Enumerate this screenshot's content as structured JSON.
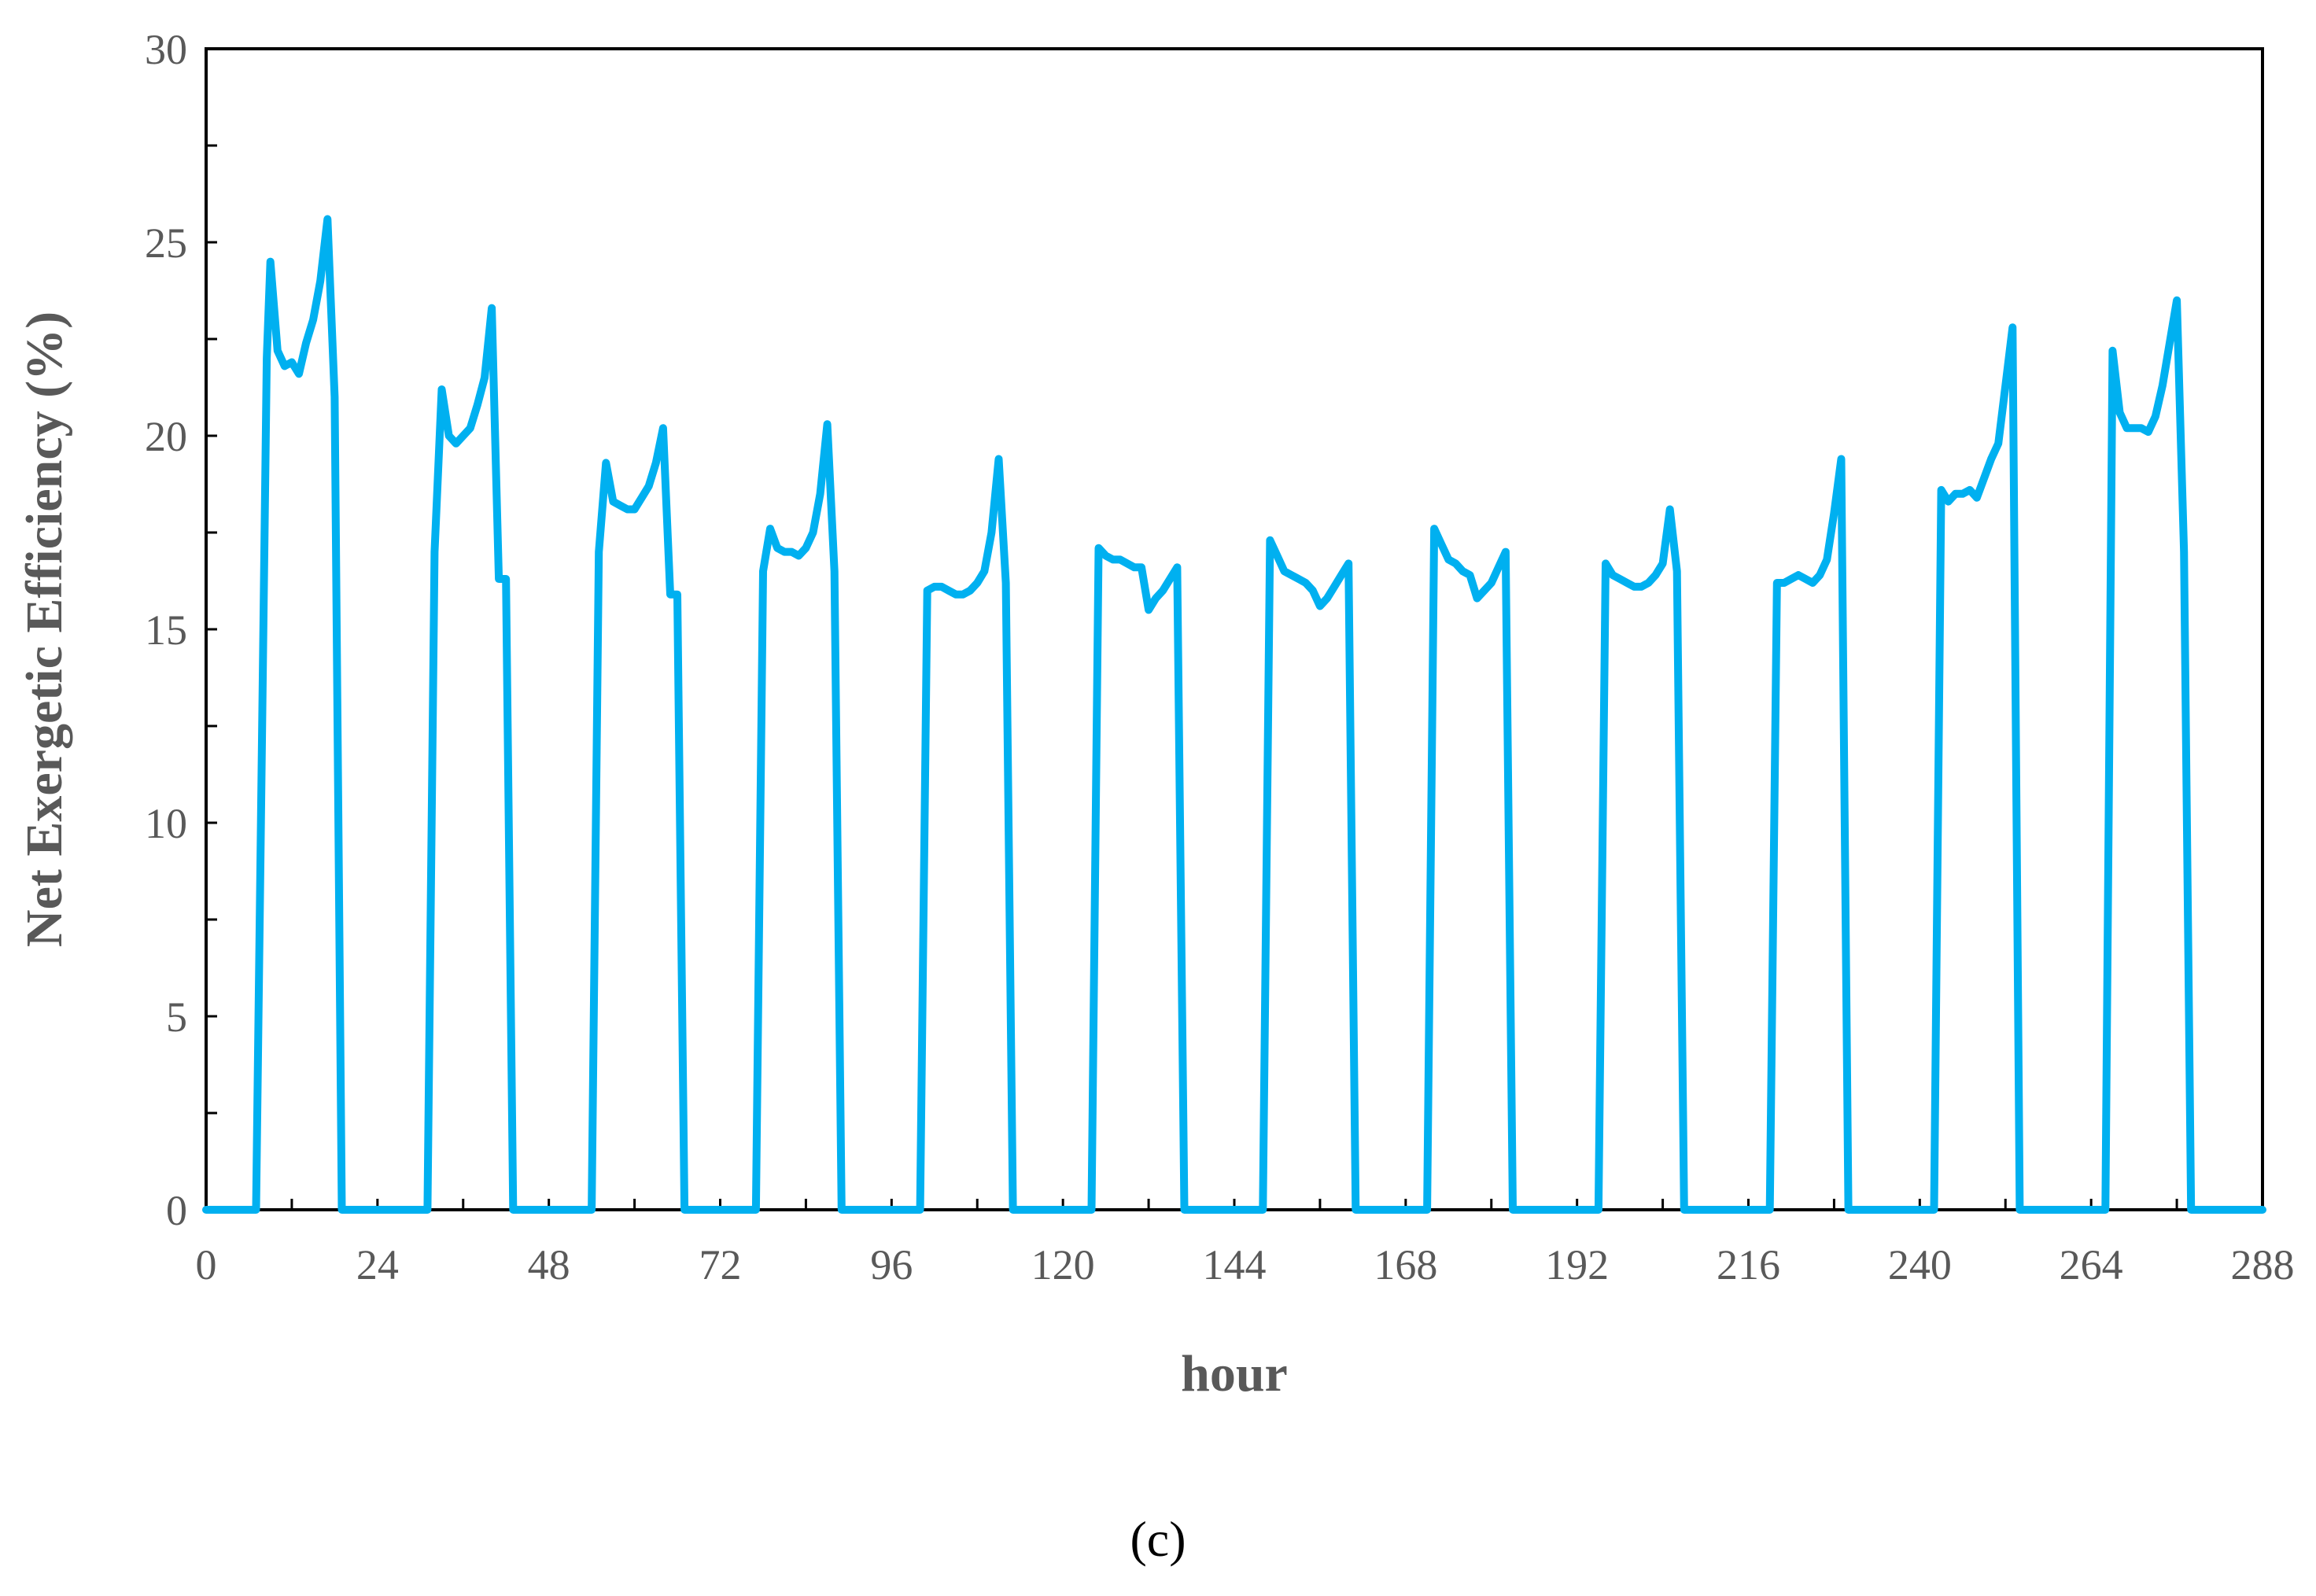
{
  "chart_data": {
    "type": "line",
    "title": "",
    "xlabel": "hour",
    "ylabel": "Net  Exergetic Efficiency (%)",
    "xlim": [
      0,
      288
    ],
    "ylim": [
      0,
      30
    ],
    "x_ticks": [
      0,
      24,
      48,
      72,
      96,
      120,
      144,
      168,
      192,
      216,
      240,
      264,
      288
    ],
    "y_ticks": [
      0,
      5,
      10,
      15,
      20,
      25,
      30
    ],
    "grid": false,
    "legend": "none",
    "series": [
      {
        "color": "#00B0F0",
        "points": [
          [
            0,
            0
          ],
          [
            7,
            0
          ],
          [
            8.5,
            22.0
          ],
          [
            9,
            24.5
          ],
          [
            10,
            22.2
          ],
          [
            11,
            21.8
          ],
          [
            12,
            21.9
          ],
          [
            13,
            21.6
          ],
          [
            14,
            22.4
          ],
          [
            15,
            23.0
          ],
          [
            16,
            24.0
          ],
          [
            17,
            25.6
          ],
          [
            18,
            21.0
          ],
          [
            19,
            0
          ],
          [
            31,
            0
          ],
          [
            32,
            17.0
          ],
          [
            33,
            21.2
          ],
          [
            34,
            20.0
          ],
          [
            35,
            19.8
          ],
          [
            36,
            20.0
          ],
          [
            37,
            20.2
          ],
          [
            38,
            20.8
          ],
          [
            39,
            21.5
          ],
          [
            40,
            23.3
          ],
          [
            41,
            16.3
          ],
          [
            42,
            16.3
          ],
          [
            43,
            0
          ],
          [
            54,
            0
          ],
          [
            55,
            17.0
          ],
          [
            56,
            19.3
          ],
          [
            57,
            18.3
          ],
          [
            58,
            18.2
          ],
          [
            59,
            18.1
          ],
          [
            60,
            18.1
          ],
          [
            61,
            18.4
          ],
          [
            62,
            18.7
          ],
          [
            63,
            19.3
          ],
          [
            64,
            20.2
          ],
          [
            65,
            15.9
          ],
          [
            66,
            15.9
          ],
          [
            67,
            0
          ],
          [
            77,
            0
          ],
          [
            78,
            16.5
          ],
          [
            79,
            17.6
          ],
          [
            80,
            17.1
          ],
          [
            81,
            17.0
          ],
          [
            82,
            17.0
          ],
          [
            83,
            16.9
          ],
          [
            84,
            17.1
          ],
          [
            85,
            17.5
          ],
          [
            86,
            18.5
          ],
          [
            87,
            20.3
          ],
          [
            88,
            16.5
          ],
          [
            89,
            0
          ],
          [
            100,
            0
          ],
          [
            101,
            16.0
          ],
          [
            102,
            16.1
          ],
          [
            103,
            16.1
          ],
          [
            104,
            16.0
          ],
          [
            105,
            15.9
          ],
          [
            106,
            15.9
          ],
          [
            107,
            16.0
          ],
          [
            108,
            16.2
          ],
          [
            109,
            16.5
          ],
          [
            110,
            17.5
          ],
          [
            111,
            19.4
          ],
          [
            112,
            16.2
          ],
          [
            113,
            0
          ],
          [
            124,
            0
          ],
          [
            125,
            17.1
          ],
          [
            126,
            16.9
          ],
          [
            127,
            16.8
          ],
          [
            128,
            16.8
          ],
          [
            129,
            16.7
          ],
          [
            130,
            16.6
          ],
          [
            131,
            16.6
          ],
          [
            132,
            15.5
          ],
          [
            133,
            15.8
          ],
          [
            134,
            16.0
          ],
          [
            135,
            16.3
          ],
          [
            136,
            16.6
          ],
          [
            137,
            0
          ],
          [
            148,
            0
          ],
          [
            149,
            17.3
          ],
          [
            150,
            16.9
          ],
          [
            151,
            16.5
          ],
          [
            152,
            16.4
          ],
          [
            153,
            16.3
          ],
          [
            154,
            16.2
          ],
          [
            155,
            16.0
          ],
          [
            156,
            15.6
          ],
          [
            157,
            15.8
          ],
          [
            158,
            16.1
          ],
          [
            159,
            16.4
          ],
          [
            160,
            16.7
          ],
          [
            161,
            0
          ],
          [
            171,
            0
          ],
          [
            172,
            17.6
          ],
          [
            173,
            17.2
          ],
          [
            174,
            16.8
          ],
          [
            175,
            16.7
          ],
          [
            176,
            16.5
          ],
          [
            177,
            16.4
          ],
          [
            178,
            15.8
          ],
          [
            179,
            16.0
          ],
          [
            180,
            16.2
          ],
          [
            181,
            16.6
          ],
          [
            182,
            17.0
          ],
          [
            183,
            0
          ],
          [
            195,
            0
          ],
          [
            196,
            16.7
          ],
          [
            197,
            16.4
          ],
          [
            198,
            16.3
          ],
          [
            199,
            16.2
          ],
          [
            200,
            16.1
          ],
          [
            201,
            16.1
          ],
          [
            202,
            16.2
          ],
          [
            203,
            16.4
          ],
          [
            204,
            16.7
          ],
          [
            205,
            18.1
          ],
          [
            206,
            16.5
          ],
          [
            207,
            0
          ],
          [
            219,
            0
          ],
          [
            220,
            16.2
          ],
          [
            221,
            16.2
          ],
          [
            222,
            16.3
          ],
          [
            223,
            16.4
          ],
          [
            224,
            16.3
          ],
          [
            225,
            16.2
          ],
          [
            226,
            16.4
          ],
          [
            227,
            16.8
          ],
          [
            228,
            18.0
          ],
          [
            229,
            19.4
          ],
          [
            230,
            0
          ],
          [
            242,
            0
          ],
          [
            243,
            18.6
          ],
          [
            244,
            18.3
          ],
          [
            245,
            18.5
          ],
          [
            246,
            18.5
          ],
          [
            247,
            18.6
          ],
          [
            248,
            18.4
          ],
          [
            249,
            18.9
          ],
          [
            250,
            19.4
          ],
          [
            251,
            19.8
          ],
          [
            252,
            21.3
          ],
          [
            253,
            22.8
          ],
          [
            254,
            0
          ],
          [
            266,
            0
          ],
          [
            267,
            22.2
          ],
          [
            268,
            20.6
          ],
          [
            269,
            20.2
          ],
          [
            270,
            20.2
          ],
          [
            271,
            20.2
          ],
          [
            272,
            20.1
          ],
          [
            273,
            20.5
          ],
          [
            274,
            21.3
          ],
          [
            275,
            22.4
          ],
          [
            276,
            23.5
          ],
          [
            277,
            17.0
          ],
          [
            278,
            0
          ],
          [
            288,
            0
          ]
        ]
      }
    ],
    "caption": "(c)"
  }
}
